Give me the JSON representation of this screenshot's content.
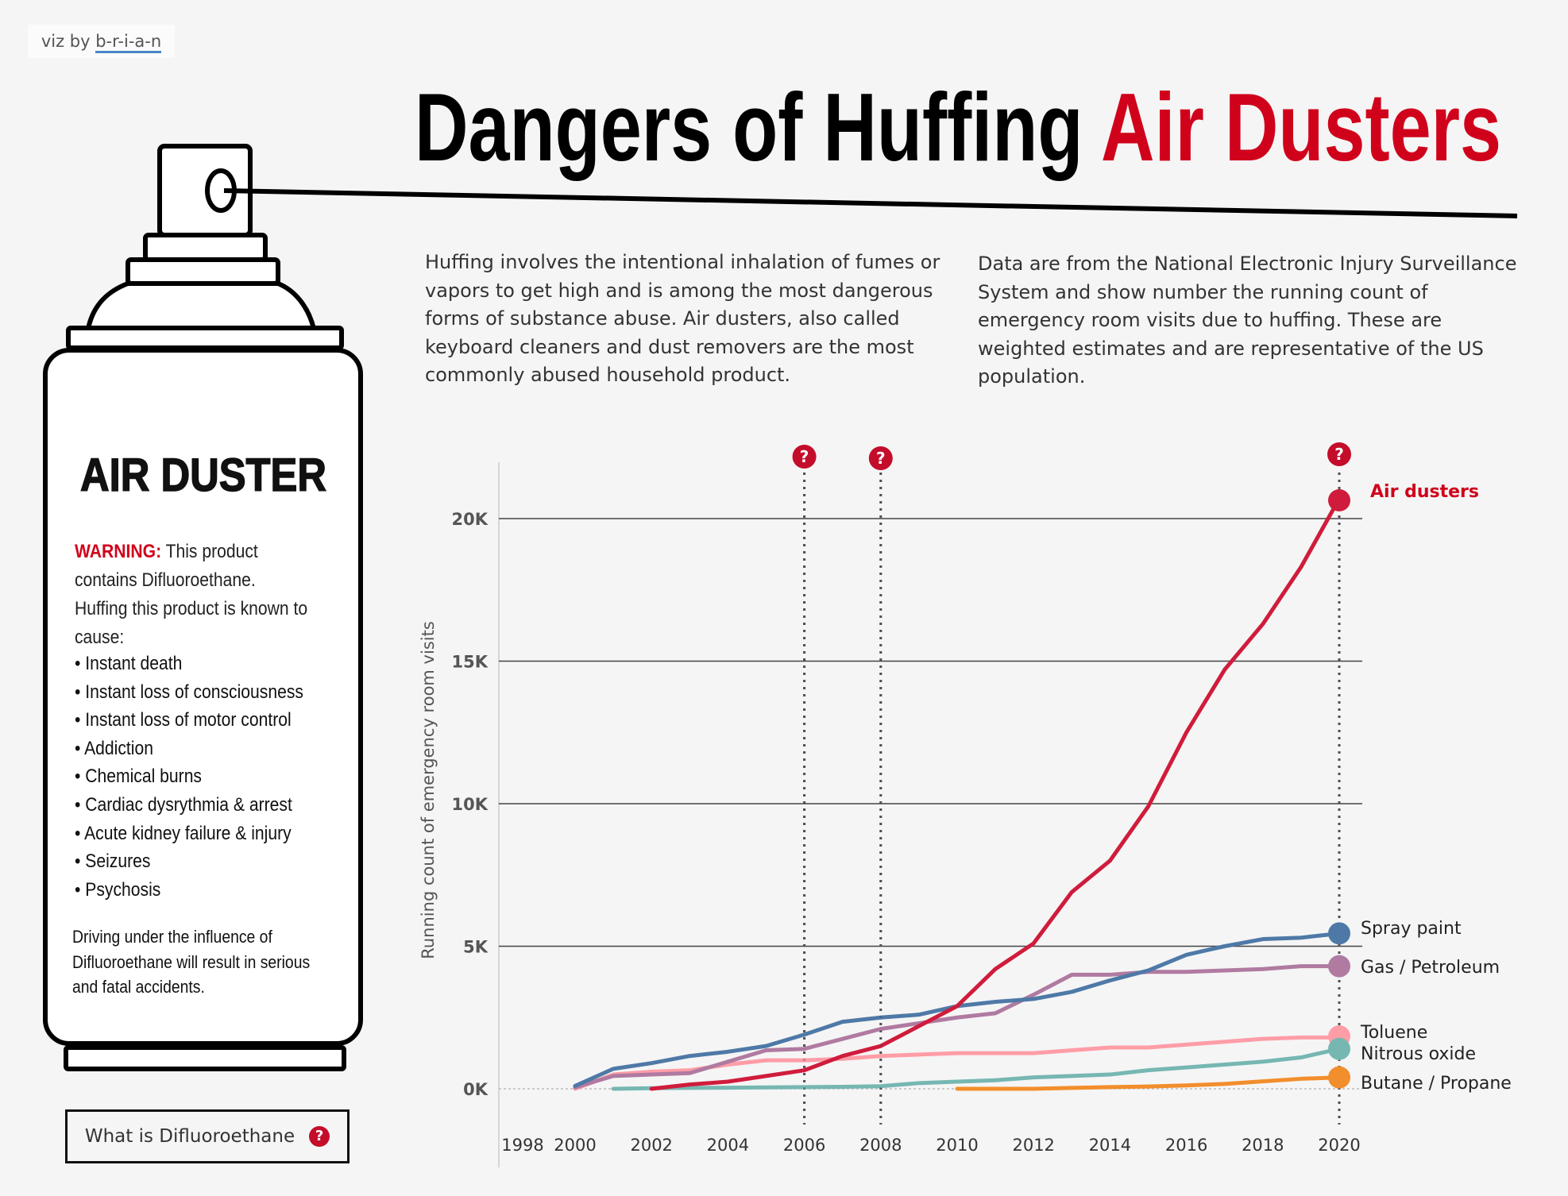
{
  "credit": {
    "prefix": "viz by ",
    "author": "b-r-i-a-n"
  },
  "title": {
    "part1": "Dangers of Huffing ",
    "part2": "Air Dusters",
    "accent_color": "#d0021b"
  },
  "intro": {
    "left": [
      "Huffing involves the intentional inhalation of fumes or",
      "vapors to get high and is among the most dangerous",
      "forms of substance abuse.  Air dusters, also called",
      "keyboard cleaners and dust removers are the most",
      "commonly abused household product."
    ],
    "right": [
      "Data are from the National Electronic Injury Surveillance",
      "System and show number the running count of",
      "emergency room visits due to huffing.  These are",
      "weighted estimates and are representative of the US",
      "population."
    ]
  },
  "can": {
    "label": "AIR DUSTER",
    "warning_label": "WARNING:",
    "warning_text": " This product contains Difluoroethane. Huffing this product is known to cause:",
    "effects": [
      "Instant death",
      "Instant loss of consciousness",
      "Instant loss of motor control",
      "Addiction",
      "Chemical burns",
      "Cardiac dysrythmia & arrest",
      "Acute kidney failure & injury",
      "Seizures",
      "Psychosis"
    ],
    "driving": "Driving under the influence of Difluoroethane will result in serious and fatal accidents."
  },
  "what_button": {
    "label": "What is Difluoroethane",
    "icon": "question-circle-icon"
  },
  "chart_data": {
    "type": "line",
    "title": "",
    "xlabel": "",
    "ylabel": "Running count of emergency room visits",
    "xlim": [
      1998,
      2020
    ],
    "ylim": [
      0,
      20000
    ],
    "x_ticks": [
      "1998",
      "2000",
      "2002",
      "2004",
      "2006",
      "2008",
      "2010",
      "2012",
      "2014",
      "2016",
      "2018",
      "2020"
    ],
    "y_ticks": [
      {
        "value": 0,
        "label": "0K"
      },
      {
        "value": 5000,
        "label": "5K"
      },
      {
        "value": 10000,
        "label": "10K"
      },
      {
        "value": 15000,
        "label": "15K"
      },
      {
        "value": 20000,
        "label": "20K"
      }
    ],
    "annotation_years": [
      2006,
      2008,
      2020
    ],
    "series": [
      {
        "name": "Toluene",
        "color": "#ff9da7",
        "x": [
          2000,
          2001,
          2002,
          2003,
          2004,
          2005,
          2006,
          2007,
          2008,
          2009,
          2010,
          2011,
          2012,
          2013,
          2014,
          2015,
          2016,
          2017,
          2018,
          2019,
          2020
        ],
        "values": [
          0,
          500,
          600,
          650,
          850,
          1000,
          1000,
          1050,
          1150,
          1200,
          1250,
          1250,
          1250,
          1350,
          1450,
          1450,
          1550,
          1650,
          1750,
          1800,
          1800
        ]
      },
      {
        "name": "Nitrous oxide",
        "color": "#76b7b2",
        "x": [
          2001,
          2002,
          2003,
          2004,
          2005,
          2006,
          2007,
          2008,
          2009,
          2010,
          2011,
          2012,
          2013,
          2014,
          2015,
          2016,
          2017,
          2018,
          2019,
          2020
        ],
        "values": [
          0,
          20,
          30,
          40,
          50,
          60,
          70,
          90,
          200,
          250,
          300,
          400,
          450,
          500,
          650,
          750,
          850,
          950,
          1100,
          1400
        ]
      },
      {
        "name": "Butane / Propane",
        "color": "#f28e2b",
        "x": [
          2010,
          2011,
          2012,
          2013,
          2014,
          2015,
          2016,
          2017,
          2018,
          2019,
          2020
        ],
        "values": [
          0,
          0,
          0,
          30,
          60,
          80,
          120,
          170,
          260,
          350,
          400
        ]
      },
      {
        "name": "Gas / Petroleum",
        "color": "#b07aa1",
        "x": [
          2000,
          2001,
          2002,
          2003,
          2004,
          2005,
          2006,
          2007,
          2008,
          2009,
          2010,
          2011,
          2012,
          2013,
          2014,
          2015,
          2016,
          2017,
          2018,
          2019,
          2020
        ],
        "values": [
          50,
          450,
          500,
          550,
          950,
          1350,
          1400,
          1750,
          2100,
          2300,
          2500,
          2650,
          3300,
          4000,
          4000,
          4100,
          4100,
          4150,
          4200,
          4300,
          4300
        ]
      },
      {
        "name": "Spray paint",
        "color": "#4e79a7",
        "x": [
          2000,
          2001,
          2002,
          2003,
          2004,
          2005,
          2006,
          2007,
          2008,
          2009,
          2010,
          2011,
          2012,
          2013,
          2014,
          2015,
          2016,
          2017,
          2018,
          2019,
          2020
        ],
        "values": [
          100,
          700,
          900,
          1150,
          1300,
          1500,
          1900,
          2350,
          2500,
          2600,
          2900,
          3050,
          3150,
          3400,
          3800,
          4150,
          4700,
          5000,
          5250,
          5300,
          5450
        ]
      },
      {
        "name": "Air dusters",
        "color": "#d01c3c",
        "x": [
          2002,
          2003,
          2004,
          2005,
          2006,
          2007,
          2008,
          2009,
          2010,
          2011,
          2012,
          2013,
          2014,
          2015,
          2016,
          2017,
          2018,
          2019,
          2020
        ],
        "values": [
          0,
          150,
          250,
          450,
          650,
          1150,
          1500,
          2200,
          2900,
          4200,
          5100,
          6900,
          8000,
          9900,
          12500,
          14700,
          16300,
          18300,
          20700
        ]
      }
    ]
  }
}
